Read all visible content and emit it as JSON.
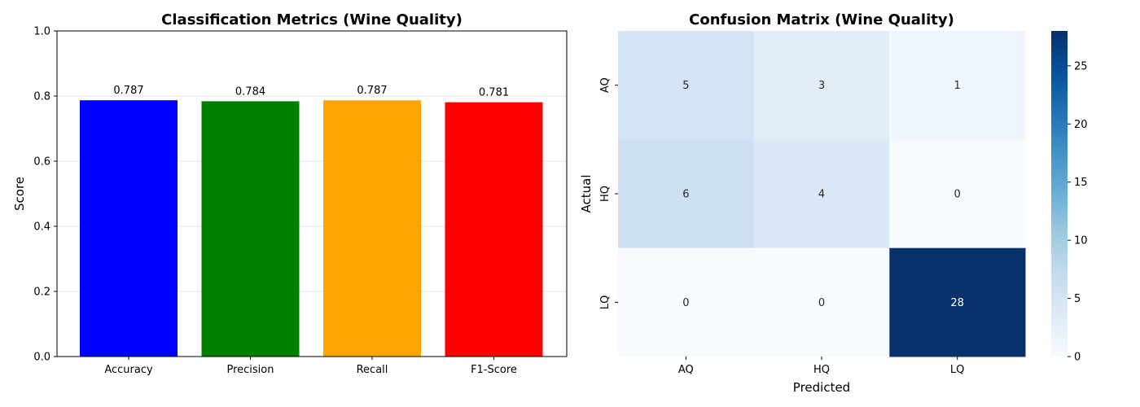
{
  "chart_data": [
    {
      "type": "bar",
      "title": "Classification Metrics (Wine Quality)",
      "xlabel": "",
      "ylabel": "Score",
      "categories": [
        "Accuracy",
        "Precision",
        "Recall",
        "F1-Score"
      ],
      "values": [
        0.787,
        0.784,
        0.787,
        0.781
      ],
      "value_labels": [
        "0.787",
        "0.784",
        "0.787",
        "0.781"
      ],
      "colors": [
        "#0000ff",
        "#008000",
        "#ffa500",
        "#ff0000"
      ],
      "ylim": [
        0,
        1
      ],
      "yticks": [
        "0.0",
        "0.2",
        "0.4",
        "0.6",
        "0.8",
        "1.0"
      ],
      "grid": "y"
    },
    {
      "type": "heatmap",
      "title": "Confusion Matrix (Wine Quality)",
      "xlabel": "Predicted",
      "ylabel": "Actual",
      "x_categories": [
        "AQ",
        "HQ",
        "LQ"
      ],
      "y_categories": [
        "AQ",
        "HQ",
        "LQ"
      ],
      "matrix": [
        [
          5,
          3,
          1
        ],
        [
          6,
          4,
          0
        ],
        [
          0,
          0,
          28
        ]
      ],
      "colormap": "Blues",
      "colorbar_range": [
        0,
        28
      ],
      "colorbar_ticks": [
        "0",
        "5",
        "10",
        "15",
        "20",
        "25"
      ]
    }
  ]
}
